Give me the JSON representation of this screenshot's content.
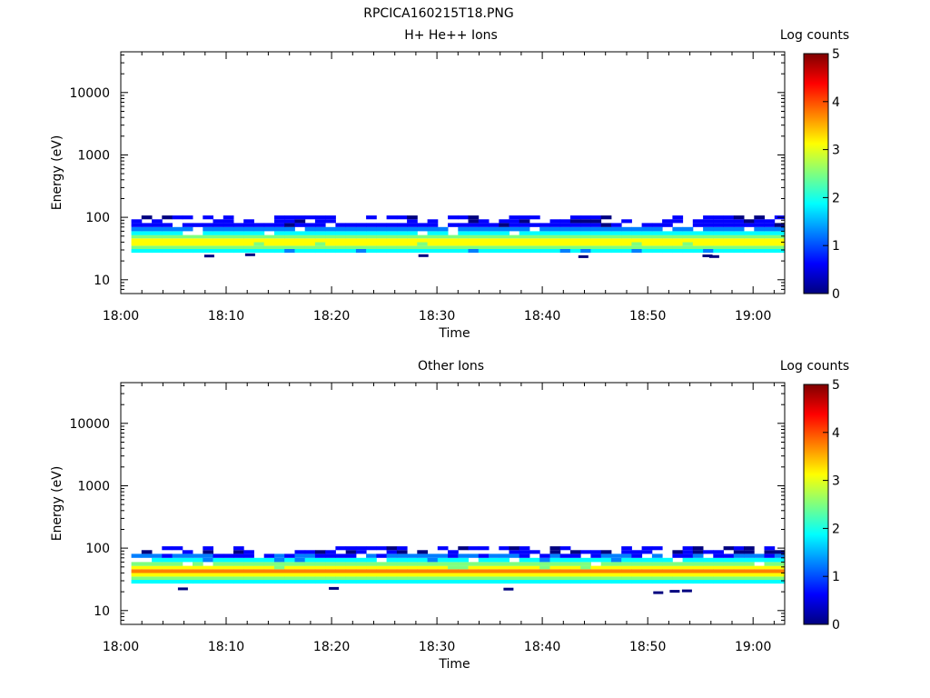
{
  "figure_title": "RPCICA160215T18.PNG",
  "colormap": [
    "#00007f",
    "#0000ff",
    "#007fff",
    "#00ffff",
    "#7fff7f",
    "#ffff00",
    "#ff7f00",
    "#ff0000",
    "#7f0000"
  ],
  "chart_data": [
    {
      "type": "heatmap",
      "title": "H+ He++ Ions",
      "xlabel": "Time",
      "ylabel": "Energy (eV)",
      "y_scale": "log",
      "xlim": [
        "18:00",
        "19:03"
      ],
      "ylim": [
        6,
        45000
      ],
      "x_ticks": [
        "18:00",
        "18:10",
        "18:20",
        "18:30",
        "18:40",
        "18:50",
        "19:00"
      ],
      "y_ticks": [
        "10",
        "100",
        "1000",
        "10000"
      ],
      "y_tick_values": [
        10,
        100,
        1000,
        10000
      ],
      "colorbar": {
        "label": "Log counts",
        "range": [
          0,
          5
        ],
        "ticks": [
          "0",
          "1",
          "2",
          "3",
          "4",
          "5"
        ]
      },
      "energy_bins_eV": [
        27,
        31,
        35,
        40,
        46,
        52,
        60,
        70,
        81,
        93
      ],
      "peak_energy_eV": 38,
      "peak_log_counts": 3.4,
      "upper_energy_limit_eV": 95,
      "lower_energy_limit_eV": 23
    },
    {
      "type": "heatmap",
      "title": "Other Ions",
      "xlabel": "Time",
      "ylabel": "Energy (eV)",
      "y_scale": "log",
      "xlim": [
        "18:00",
        "19:03"
      ],
      "ylim": [
        6,
        45000
      ],
      "x_ticks": [
        "18:00",
        "18:10",
        "18:20",
        "18:30",
        "18:40",
        "18:50",
        "19:00"
      ],
      "y_ticks": [
        "10",
        "100",
        "1000",
        "10000"
      ],
      "y_tick_values": [
        10,
        100,
        1000,
        10000
      ],
      "colorbar": {
        "label": "Log counts",
        "range": [
          0,
          5
        ],
        "ticks": [
          "0",
          "1",
          "2",
          "3",
          "4",
          "5"
        ]
      },
      "energy_bins_eV": [
        27,
        31,
        35,
        40,
        46,
        52,
        60,
        70,
        81,
        93
      ],
      "peak_energy_eV": 40,
      "peak_log_counts": 3.7,
      "upper_energy_limit_eV": 95,
      "lower_energy_limit_eV": 20
    }
  ]
}
